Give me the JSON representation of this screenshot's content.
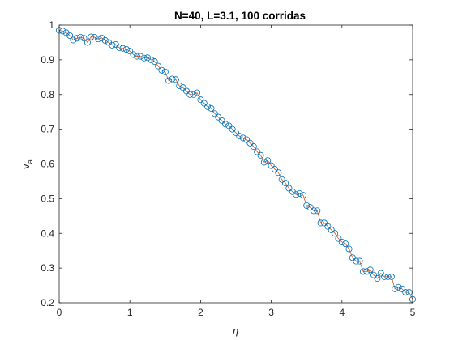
{
  "chart_data": {
    "type": "line",
    "title": "N=40, L=3.1, 100 corridas",
    "xlabel": "η",
    "ylabel": "v",
    "ylabel_subscript": "a",
    "xlim": [
      0,
      5
    ],
    "ylim": [
      0.2,
      1
    ],
    "xticks": [
      "0",
      "1",
      "2",
      "3",
      "4",
      "5"
    ],
    "yticks": [
      "0.2",
      "0.3",
      "0.4",
      "0.5",
      "0.6",
      "0.7",
      "0.8",
      "0.9",
      "1"
    ],
    "grid": false,
    "legend": "none",
    "colors": {
      "line": "#d95319",
      "marker": "#0072bd",
      "axis": "#262626"
    },
    "series": [
      {
        "marker": "circle",
        "x": [
          0.0,
          0.05,
          0.1,
          0.15,
          0.2,
          0.25,
          0.3,
          0.35,
          0.4,
          0.45,
          0.5,
          0.55,
          0.6,
          0.65,
          0.7,
          0.75,
          0.8,
          0.85,
          0.9,
          0.95,
          1.0,
          1.05,
          1.1,
          1.15,
          1.2,
          1.25,
          1.3,
          1.35,
          1.4,
          1.45,
          1.5,
          1.55,
          1.6,
          1.65,
          1.7,
          1.75,
          1.8,
          1.85,
          1.9,
          1.95,
          2.0,
          2.05,
          2.1,
          2.15,
          2.2,
          2.25,
          2.3,
          2.35,
          2.4,
          2.45,
          2.5,
          2.55,
          2.6,
          2.65,
          2.7,
          2.75,
          2.8,
          2.85,
          2.9,
          2.95,
          3.0,
          3.05,
          3.1,
          3.15,
          3.2,
          3.25,
          3.3,
          3.35,
          3.4,
          3.45,
          3.5,
          3.55,
          3.6,
          3.65,
          3.7,
          3.75,
          3.8,
          3.85,
          3.9,
          3.95,
          4.0,
          4.05,
          4.1,
          4.15,
          4.2,
          4.25,
          4.3,
          4.35,
          4.4,
          4.45,
          4.5,
          4.55,
          4.6,
          4.65,
          4.7,
          4.75,
          4.8,
          4.85,
          4.9,
          4.95,
          5.0
        ],
        "y": [
          0.985,
          0.983,
          0.978,
          0.97,
          0.957,
          0.962,
          0.965,
          0.962,
          0.95,
          0.966,
          0.965,
          0.96,
          0.963,
          0.956,
          0.95,
          0.942,
          0.944,
          0.935,
          0.933,
          0.93,
          0.925,
          0.915,
          0.91,
          0.91,
          0.905,
          0.906,
          0.9,
          0.895,
          0.882,
          0.87,
          0.865,
          0.84,
          0.845,
          0.843,
          0.825,
          0.82,
          0.81,
          0.8,
          0.8,
          0.805,
          0.785,
          0.775,
          0.765,
          0.76,
          0.745,
          0.735,
          0.725,
          0.715,
          0.71,
          0.7,
          0.69,
          0.68,
          0.675,
          0.67,
          0.66,
          0.65,
          0.635,
          0.625,
          0.605,
          0.61,
          0.595,
          0.585,
          0.575,
          0.555,
          0.545,
          0.53,
          0.52,
          0.512,
          0.515,
          0.51,
          0.48,
          0.475,
          0.465,
          0.465,
          0.43,
          0.43,
          0.42,
          0.41,
          0.4,
          0.385,
          0.375,
          0.37,
          0.355,
          0.33,
          0.32,
          0.32,
          0.29,
          0.29,
          0.295,
          0.28,
          0.27,
          0.285,
          0.275,
          0.275,
          0.275,
          0.24,
          0.245,
          0.24,
          0.23,
          0.23,
          0.21
        ]
      }
    ]
  }
}
